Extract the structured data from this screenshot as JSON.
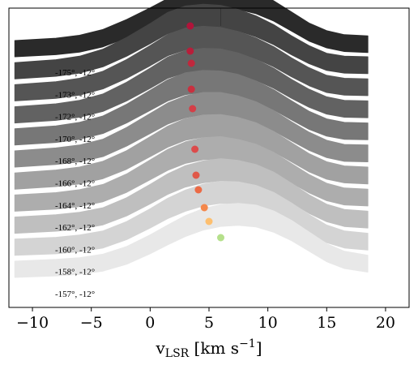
{
  "chart_data": {
    "type": "area",
    "title": "",
    "xlabel": "vLSR [km s−1]",
    "xlabel_parts": {
      "main": "v",
      "sub": "LSR",
      "bracket_open": " [km s",
      "sup": "−1",
      "bracket_close": "]"
    },
    "ylabel": "",
    "xlim": [
      -12,
      22
    ],
    "xticks": [
      -10,
      -5,
      0,
      5,
      10,
      15,
      20
    ],
    "xtick_labels": [
      "−10",
      "−5",
      "0",
      "5",
      "10",
      "15",
      "20"
    ],
    "vertical_marker_x": 6,
    "x": [
      -11.5,
      -8,
      -6,
      -4,
      -2,
      0,
      1.5,
      3,
      4.5,
      6,
      7.5,
      9,
      10.5,
      12,
      13.5,
      15,
      16.5,
      18.5
    ],
    "series": [
      {
        "name": "-157°, -12°",
        "color": "#e8e8e8",
        "peak_velocity": 6.0,
        "values": [
          0,
          0.03,
          0.06,
          0.12,
          0.25,
          0.45,
          0.62,
          0.78,
          0.9,
          0.97,
          0.99,
          0.96,
          0.86,
          0.7,
          0.5,
          0.3,
          0.17,
          0.1
        ],
        "peak_color": "#b5e08b"
      },
      {
        "name": "-158°, -12°",
        "color": "#d4d4d4",
        "peak_velocity": 5.0,
        "values": [
          0,
          0.03,
          0.07,
          0.14,
          0.3,
          0.52,
          0.7,
          0.84,
          0.94,
          0.99,
          0.98,
          0.92,
          0.8,
          0.62,
          0.42,
          0.24,
          0.14,
          0.1
        ],
        "peak_color": "#fdbf6f"
      },
      {
        "name": "-160°, -12°",
        "color": "#bfbfbf",
        "peak_velocity": 4.6,
        "values": [
          0,
          0.04,
          0.08,
          0.16,
          0.33,
          0.56,
          0.74,
          0.88,
          0.96,
          1.0,
          0.97,
          0.9,
          0.77,
          0.58,
          0.38,
          0.22,
          0.13,
          0.1
        ],
        "peak_color": "#f4874b"
      },
      {
        "name": "-162°, -12°",
        "color": "#adadad",
        "peak_velocity": 4.1,
        "values": [
          0,
          0.04,
          0.09,
          0.18,
          0.36,
          0.6,
          0.78,
          0.91,
          0.98,
          1.0,
          0.95,
          0.87,
          0.73,
          0.54,
          0.35,
          0.2,
          0.12,
          0.1
        ],
        "peak_color": "#ec6a45"
      },
      {
        "name": "-164°, -12°",
        "color": "#a1a1a1",
        "peak_velocity": 3.9,
        "values": [
          0,
          0.05,
          0.1,
          0.2,
          0.38,
          0.62,
          0.8,
          0.93,
          0.99,
          1.0,
          0.95,
          0.86,
          0.71,
          0.52,
          0.33,
          0.19,
          0.12,
          0.1
        ],
        "peak_color": "#e05849"
      },
      {
        "name": "-166°, -12°",
        "color": "#8c8c8c",
        "peak_velocity": 3.8,
        "values": [
          0,
          0.05,
          0.1,
          0.2,
          0.4,
          0.64,
          0.82,
          0.94,
          1.0,
          1.0,
          0.94,
          0.84,
          0.69,
          0.5,
          0.32,
          0.18,
          0.11,
          0.1
        ],
        "peak_color": "#dc4b4b"
      },
      {
        "name": "-168°, -12°",
        "color": "#777777",
        "peak_velocity": 3.6,
        "values": [
          0,
          0.05,
          0.11,
          0.22,
          0.42,
          0.66,
          0.84,
          0.96,
          1.0,
          0.99,
          0.93,
          0.82,
          0.67,
          0.48,
          0.3,
          0.17,
          0.11,
          0.1
        ],
        "peak_color": "#d43f47"
      },
      {
        "name": "-170°, -12°",
        "color": "#626262",
        "peak_velocity": 3.5,
        "values": [
          0,
          0.05,
          0.11,
          0.22,
          0.42,
          0.66,
          0.85,
          0.96,
          1.0,
          0.99,
          0.92,
          0.81,
          0.66,
          0.47,
          0.3,
          0.17,
          0.11,
          0.1
        ],
        "peak_color": "#c9303f"
      },
      {
        "name": "-172°, -12°",
        "color": "#555555",
        "peak_velocity": 3.5,
        "values": [
          0,
          0.05,
          0.11,
          0.23,
          0.43,
          0.67,
          0.86,
          0.97,
          1.0,
          0.98,
          0.91,
          0.8,
          0.65,
          0.46,
          0.29,
          0.16,
          0.11,
          0.1
        ],
        "peak_color": "#c0283d"
      },
      {
        "name": "-173°, -12°",
        "color": "#444444",
        "peak_velocity": 3.4,
        "values": [
          0,
          0.05,
          0.11,
          0.23,
          0.43,
          0.67,
          0.86,
          0.97,
          1.0,
          0.98,
          0.91,
          0.8,
          0.65,
          0.46,
          0.29,
          0.16,
          0.11,
          0.1
        ],
        "peak_color": "#b81e3a"
      },
      {
        "name": "-175°, -12°",
        "color": "#2a2a2a",
        "peak_velocity": 3.4,
        "values": [
          0,
          0.04,
          0.09,
          0.19,
          0.36,
          0.56,
          0.72,
          0.82,
          0.88,
          0.92,
          0.9,
          0.82,
          0.68,
          0.49,
          0.3,
          0.17,
          0.1,
          0.08
        ],
        "peak_color": "#b0143a"
      }
    ]
  }
}
